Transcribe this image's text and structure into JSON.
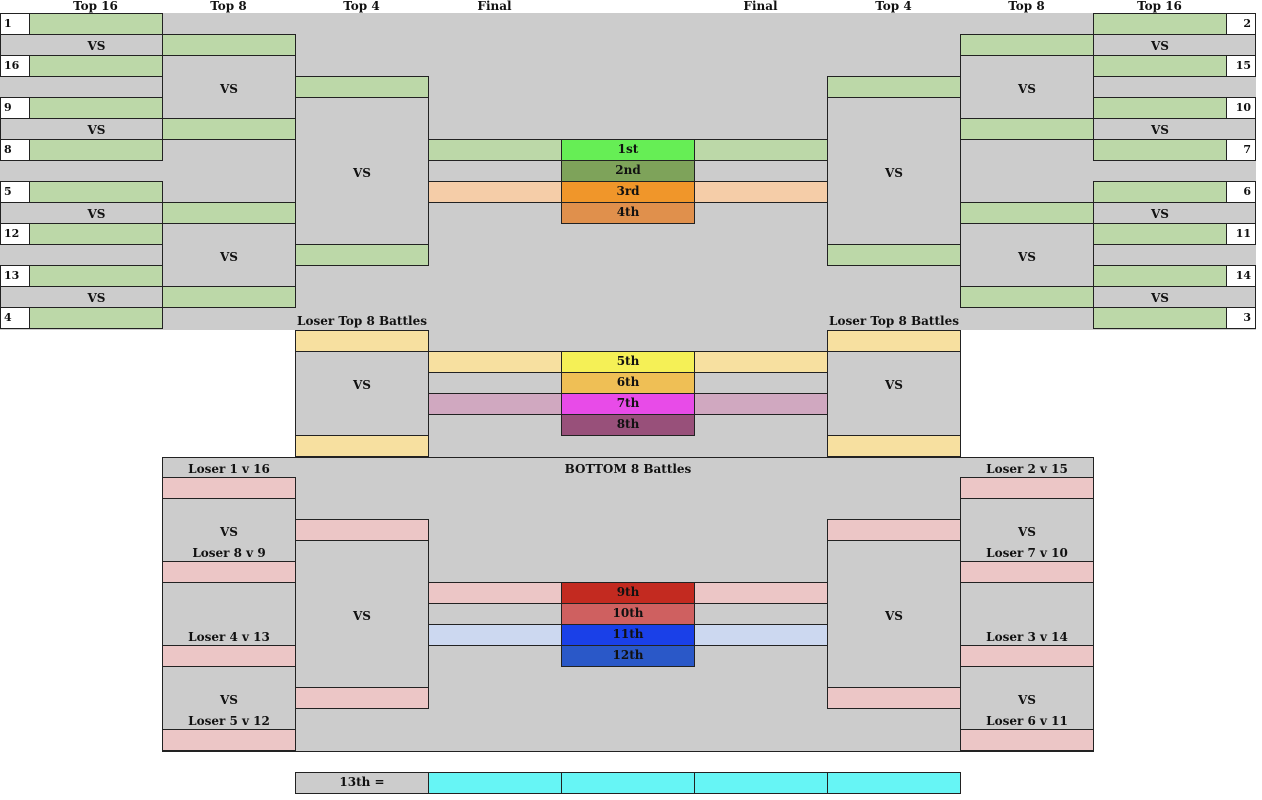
{
  "headers": {
    "top16": "Top 16",
    "top8": "Top 8",
    "top4": "Top 4",
    "final": "Final"
  },
  "seeds_left": [
    "1",
    "16",
    "9",
    "8",
    "5",
    "12",
    "13",
    "4"
  ],
  "seeds_right": [
    "2",
    "15",
    "10",
    "7",
    "6",
    "11",
    "14",
    "3"
  ],
  "vs": "VS",
  "placements": [
    "1st",
    "2nd",
    "3rd",
    "4th",
    "5th",
    "6th",
    "7th",
    "8th",
    "9th",
    "10th",
    "11th",
    "12th"
  ],
  "loser_top8": "Loser Top 8 Battles",
  "bottom8_title": "BOTTOM 8 Battles",
  "losers_left": [
    "Loser 1 v 16",
    "Loser 8 v 9",
    "Loser 4 v 13",
    "Loser 5 v 12"
  ],
  "losers_right": [
    "Loser 2 v 15",
    "Loser 7 v 10",
    "Loser 3 v 14",
    "Loser 6 v 11"
  ],
  "thirteenth": "13th =",
  "colors": {
    "place_1": "#66ee55",
    "place_2": "#7ea35a",
    "place_3": "#f0962a",
    "place_4": "#e0904c",
    "place_5": "#f5f056",
    "place_6": "#efbf55",
    "place_7": "#e84be8",
    "place_8": "#98507a",
    "place_9": "#c32a20",
    "place_10": "#cf6060",
    "place_11": "#1a40e8",
    "place_12": "#2a58c8",
    "final_1_2": "#bcd8a8",
    "final_3_4": "#f5cda8",
    "final_5_6": "#f7e0a0",
    "final_7_8": "#d0a8c0",
    "final_9_10": "#ecc6c6",
    "final_11_12": "#ccd8f0",
    "thirteenth": "#66f5f5"
  }
}
